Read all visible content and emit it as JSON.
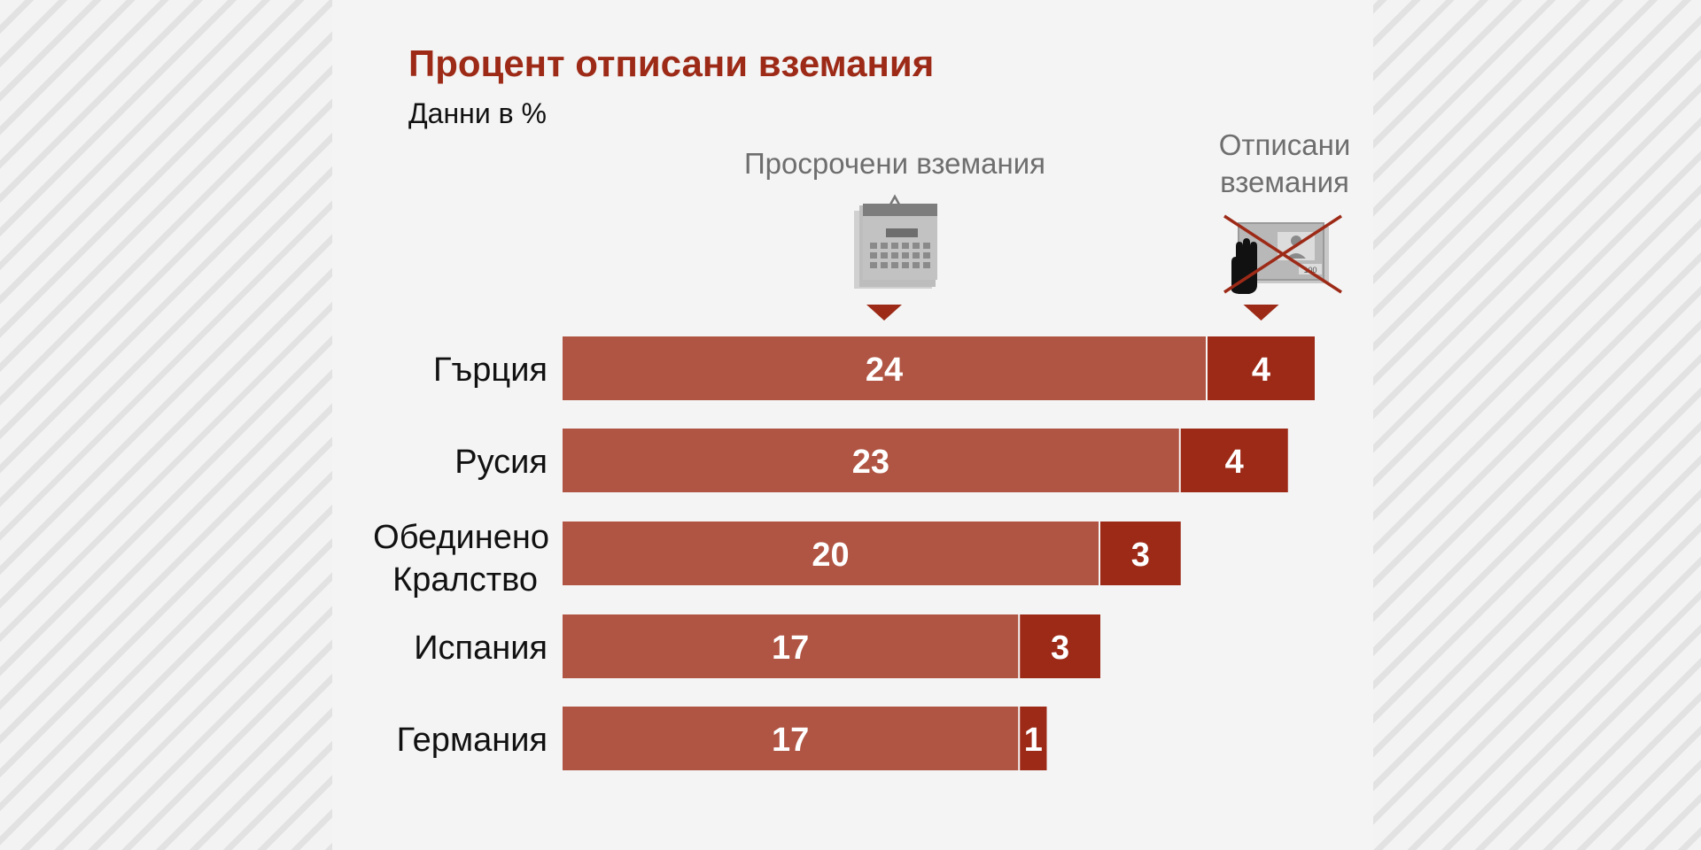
{
  "colors": {
    "overdue": "#b05443",
    "written_off": "#9d2a17",
    "title": "#9d2a17",
    "label": "#111111",
    "muted": "#6e6e6e"
  },
  "icons": {
    "overdue": "calendar-icon",
    "written_off": "crossed-out-invoice-icon"
  },
  "chart_data": {
    "type": "bar",
    "orientation": "horizontal",
    "stacked": true,
    "title": "Процент отписани вземания",
    "subtitle": "Данни в %",
    "categories": [
      "Гърция",
      "Русия",
      "Обединено Кралство",
      "Испания",
      "Германия"
    ],
    "series": [
      {
        "name": "Просрочени вземания",
        "values": [
          24,
          23,
          20,
          17,
          17
        ]
      },
      {
        "name": "Отписани вземания",
        "values": [
          4,
          4,
          3,
          3,
          1
        ]
      }
    ],
    "xlim": [
      0,
      28
    ],
    "grid": false,
    "legend": "top"
  }
}
